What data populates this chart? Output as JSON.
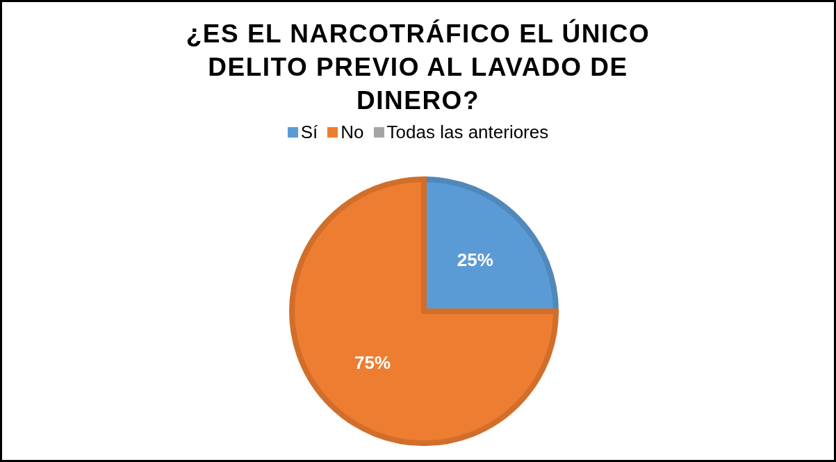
{
  "chart_data": {
    "type": "pie",
    "title": "¿ES EL NARCOTRÁFICO EL ÚNICO DELITO PREVIO AL LAVADO DE DINERO?",
    "categories": [
      "Sí",
      "No",
      "Todas las anteriores"
    ],
    "values": [
      25,
      75,
      0
    ],
    "colors": [
      "#5b9bd5",
      "#ed7d31",
      "#a5a5a5"
    ],
    "value_labels": [
      "25%",
      "75%",
      null
    ],
    "legend": "top"
  }
}
